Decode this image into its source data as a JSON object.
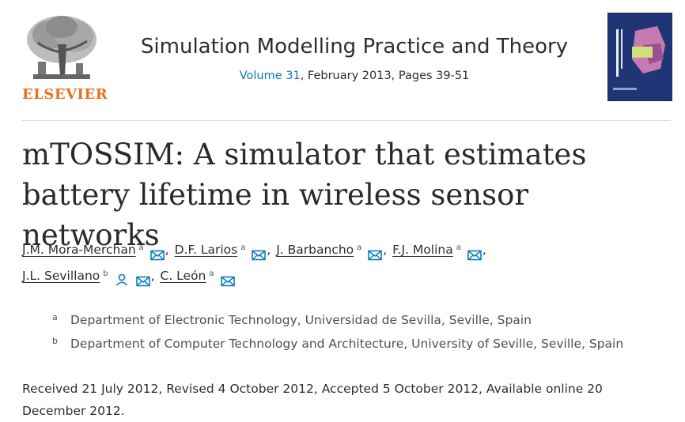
{
  "publisher": {
    "name": "ELSEVIER"
  },
  "journal": {
    "title": "Simulation Modelling Practice and Theory",
    "volume_link": "Volume 31",
    "issue_rest": ", February 2013, Pages 39-51"
  },
  "article": {
    "title": "mTOSSIM: A simulator that estimates battery lifetime in wireless sensor networks"
  },
  "authors": [
    {
      "name": "J.M. Mora-Merchan",
      "sup": "a",
      "sep": ",",
      "icons": [
        "mail-icon"
      ]
    },
    {
      "name": "D.F. Larios",
      "sup": "a",
      "sep": ",",
      "icons": [
        "mail-icon"
      ]
    },
    {
      "name": "J. Barbancho",
      "sup": "a",
      "sep": ",",
      "icons": [
        "mail-icon"
      ]
    },
    {
      "name": "F.J. Molina",
      "sup": "a",
      "sep": ",",
      "icons": [
        "mail-icon"
      ]
    },
    {
      "name": "J.L. Sevillano",
      "sup": "b",
      "sep": ",",
      "icons": [
        "person-icon",
        "mail-icon"
      ]
    },
    {
      "name": "C. León",
      "sup": "a",
      "sep": "",
      "icons": [
        "mail-icon"
      ]
    }
  ],
  "affiliations": [
    {
      "label": "a",
      "text": "Department of Electronic Technology, Universidad de Sevilla, Seville, Spain"
    },
    {
      "label": "b",
      "text": "Department of Computer Technology and Architecture, University of Seville, Seville, Spain"
    }
  ],
  "history": "Received 21 July 2012, Revised 4 October 2012, Accepted 5 October 2012, Available online 20 December 2012.",
  "colors": {
    "link": "#0c7dbb",
    "brand": "#e9711c",
    "cover": "#1f3576"
  }
}
